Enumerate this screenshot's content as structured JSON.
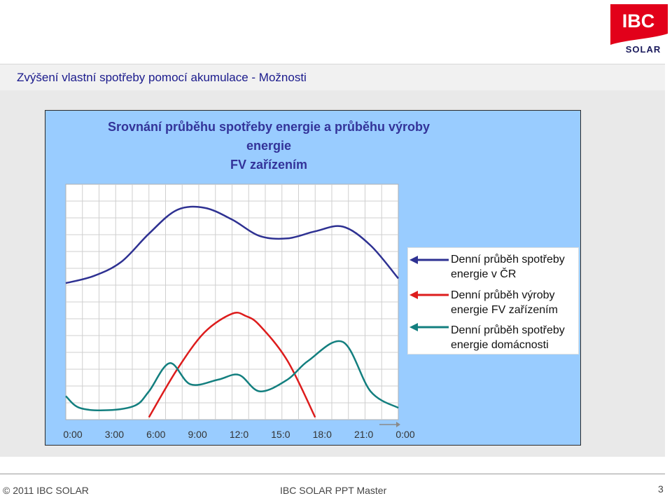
{
  "page": {
    "title": "Zvýšení vlastní spotřeby pomocí akumulace - Možnosti"
  },
  "logo": {
    "brand_top": "IBC",
    "brand_bottom": "SOLAR",
    "color": "#e2001a"
  },
  "footer": {
    "copyright": "© 2011 IBC SOLAR",
    "master": "IBC SOLAR PPT Master",
    "page_number": "3"
  },
  "chart_data": {
    "type": "line",
    "title_line1": "Srovnání průběhu spotřeby energie a průběhu výroby energie",
    "title_line2": "FV zařízením",
    "x_tick_labels": [
      "0:00",
      "3:00",
      "6:00",
      "9:00",
      "12:0",
      "15:0",
      "18:0",
      "21:0",
      "0:00"
    ],
    "x_range": [
      0,
      24
    ],
    "y_range": [
      0,
      100
    ],
    "y_tick_labels": [],
    "grid": true,
    "legend_position": "right",
    "panel_color": "#99ccff",
    "series": [
      {
        "name": "Denní průběh spotřeby energie v ČR",
        "color": "#2e3192",
        "x": [
          0,
          2,
          4,
          6,
          8,
          10,
          12,
          14,
          16,
          18,
          20,
          22,
          24
        ],
        "y": [
          58,
          61,
          67,
          79,
          89,
          90,
          85,
          78,
          77,
          80,
          82,
          74,
          60
        ]
      },
      {
        "name": "Denní průběh výroby energie FV zařízením",
        "color": "#dd1c1c",
        "x": [
          6,
          8,
          10,
          12,
          13,
          14,
          16,
          18
        ],
        "y": [
          1,
          21,
          37,
          45,
          44,
          40,
          25,
          1
        ]
      },
      {
        "name": "Denní průběh spotřeby energie domácnosti",
        "color": "#137f7f",
        "x": [
          0,
          1,
          3,
          5,
          6,
          7.5,
          9,
          11,
          12.5,
          14,
          16,
          17.5,
          20,
          22,
          24
        ],
        "y": [
          10,
          5,
          4,
          6,
          12,
          24,
          15,
          17,
          19,
          12,
          17,
          25,
          33,
          12,
          5
        ]
      }
    ]
  }
}
